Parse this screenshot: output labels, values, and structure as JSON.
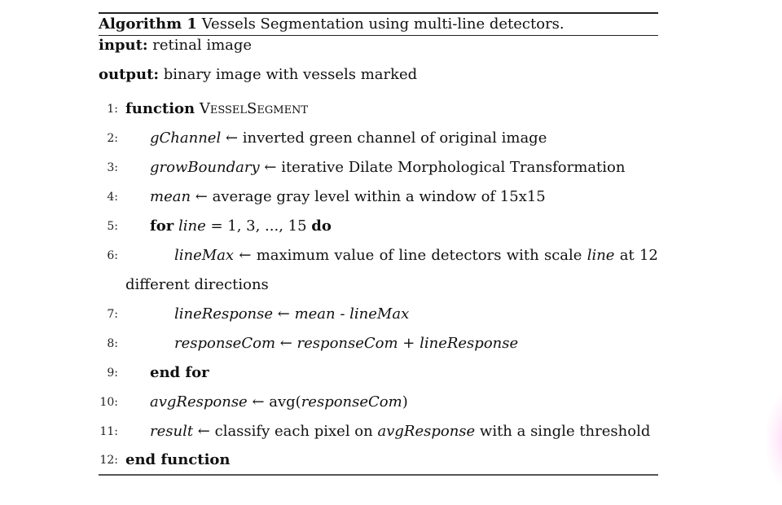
{
  "algorithm": {
    "label": "Algorithm 1",
    "title": "Vessels Segmentation using multi-line detectors.",
    "input_kw": "input:",
    "input_text": "retinal image",
    "output_kw": "output:",
    "output_text": "binary image with vessels marked"
  },
  "lines": {
    "l1": {
      "num": "1:",
      "kw": "function",
      "name": "VesselSegment"
    },
    "l2": {
      "num": "2:",
      "var": "gChannel",
      "arrow": " ← ",
      "text": "inverted green channel of original image"
    },
    "l3": {
      "num": "3:",
      "var": "growBoundary",
      "arrow": " ← ",
      "text": "iterative Dilate Morphological Transformation"
    },
    "l4": {
      "num": "4:",
      "var": "mean",
      "arrow": " ← ",
      "text": "average gray level within a window of 15x15"
    },
    "l5": {
      "num": "5:",
      "kw_for": "for",
      "var": "line",
      "text": " = 1, 3, ..., 15 ",
      "kw_do": "do"
    },
    "l6": {
      "num": "6:",
      "var": "lineMax",
      "arrow": "←",
      "w1": "maximum",
      "w2": "value",
      "w3": "of",
      "w4": "line",
      "w5": "detectors",
      "w6": "with",
      "w7": "scale",
      "var2": "line",
      "w8": "at",
      "w9": "12",
      "cont": "different directions"
    },
    "l7": {
      "num": "7:",
      "var": "lineResponse",
      "arrow": " ← ",
      "var2": "mean",
      "op": " - ",
      "var3": "lineMax"
    },
    "l8": {
      "num": "8:",
      "var": "responseCom",
      "arrow": " ← ",
      "var2": "responseCom",
      "op": " + ",
      "var3": "lineResponse"
    },
    "l9": {
      "num": "9:",
      "kw": "end for"
    },
    "l10": {
      "num": "10:",
      "var": "avgResponse",
      "arrow": " ← ",
      "fn": "avg(",
      "var2": "responseCom",
      "close": ")"
    },
    "l11": {
      "num": "11:",
      "var": "result",
      "arrow": " ← ",
      "text": "classify each pixel on ",
      "var2": "avgResponse",
      "text2": " with a single threshold"
    },
    "l12": {
      "num": "12:",
      "kw": "end function"
    }
  }
}
